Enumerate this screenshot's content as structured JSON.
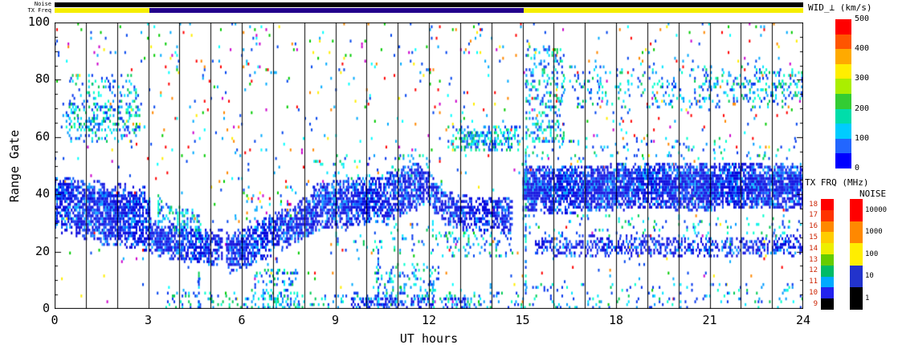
{
  "axes": {
    "xlabel": "UT hours",
    "ylabel": "Range Gate",
    "xticks": [
      "0",
      "3",
      "6",
      "9",
      "12",
      "15",
      "18",
      "21",
      "24"
    ],
    "yticks": [
      "0",
      "20",
      "40",
      "60",
      "80",
      "100"
    ]
  },
  "top_strips": {
    "noise_label": "Noise",
    "txfreq_label": "TX Freq",
    "noise_segments": [
      {
        "t0": 0,
        "t1": 24,
        "color": "#000000"
      }
    ],
    "txfreq_segments": [
      {
        "t0": 0,
        "t1": 3.05,
        "color": "#f5ee00"
      },
      {
        "t0": 3.05,
        "t1": 15.05,
        "color": "#23008c"
      },
      {
        "t0": 15.05,
        "t1": 24,
        "color": "#f5ee00"
      }
    ]
  },
  "legends": {
    "wid": {
      "title": "WID_⊥ (km/s)",
      "ticks": [
        "500",
        "400",
        "300",
        "200",
        "100",
        "0"
      ],
      "colors_top_to_bottom": [
        "#ff0000",
        "#ff5500",
        "#ffaa00",
        "#ffee00",
        "#aaee00",
        "#33cc33",
        "#00ddaa",
        "#00ccff",
        "#2266ff",
        "#0000ff"
      ]
    },
    "txfrq": {
      "title": "TX FRQ (MHz)",
      "ticks": [
        "18",
        "17",
        "16",
        "15",
        "14",
        "13",
        "12",
        "11",
        "10",
        "9"
      ],
      "colors_top_to_bottom": [
        "#ff0000",
        "#ff3300",
        "#ff8800",
        "#ffcc00",
        "#eeee00",
        "#66cc00",
        "#00bb66",
        "#00aaff",
        "#2222ee",
        "#000000"
      ]
    },
    "noise": {
      "title": "NOISE",
      "ticks": [
        "10000",
        "1000",
        "100",
        "10",
        "1"
      ],
      "colors_top_to_bottom": [
        "#ff0000",
        "#ff8800",
        "#ffee00",
        "#2233cc",
        "#000000"
      ]
    }
  },
  "chart_data": {
    "type": "heatmap",
    "title": "",
    "xlabel": "UT hours",
    "ylabel": "Range Gate",
    "xlim": [
      0,
      24
    ],
    "ylim": [
      0,
      100
    ],
    "xticks": [
      0,
      3,
      6,
      9,
      12,
      15,
      18,
      21,
      24
    ],
    "yticks": [
      0,
      20,
      40,
      60,
      80,
      100
    ],
    "grid": "vertical black line at every UT hour",
    "value_scale": {
      "name": "WID_⊥",
      "units": "km/s",
      "range": [
        0,
        500
      ]
    },
    "tx_freq_track": [
      {
        "t0": 0,
        "t1": 3,
        "approx_MHz": 14
      },
      {
        "t0": 3,
        "t1": 15,
        "approx_MHz": 11
      },
      {
        "t0": 15,
        "t1": 24,
        "approx_MHz": 14
      }
    ],
    "noise_track": [
      {
        "t0": 0,
        "t1": 24,
        "approx_level": 1
      }
    ],
    "palettes": {
      "core": [
        "#0000dd",
        "#0000dd",
        "#0000dd",
        "#0000dd",
        "#1133ee",
        "#0055ff",
        "#00aaff"
      ],
      "cool": [
        "#0033ee",
        "#0033ee",
        "#0099ff",
        "#00e5ff",
        "#00ffcc",
        "#00cc55"
      ],
      "mixed": [
        "#0044ee",
        "#0044ee",
        "#00aaff",
        "#00aaff",
        "#00ffff",
        "#00cc00",
        "#ff0000",
        "#ff8800",
        "#ffee00",
        "#cc00cc"
      ]
    },
    "bands": [
      {
        "t0": 0.0,
        "t1": 3.05,
        "pts": [
          [
            0,
            36
          ],
          [
            0.8,
            34
          ],
          [
            1.6,
            31
          ],
          [
            2.4,
            30
          ],
          [
            3.05,
            29
          ]
        ],
        "hw": 9,
        "density": 0.8,
        "palette": "core"
      },
      {
        "t0": 0.0,
        "t1": 3.05,
        "pts": [
          [
            0,
            42
          ],
          [
            3.05,
            38
          ]
        ],
        "hw": 4,
        "density": 0.5,
        "palette": "core"
      },
      {
        "t0": 3.05,
        "t1": 5.35,
        "pts": [
          [
            3.05,
            25
          ],
          [
            4.2,
            22
          ],
          [
            5.35,
            21
          ]
        ],
        "hw": 6,
        "density": 0.8,
        "palette": "core"
      },
      {
        "t0": 3.3,
        "t1": 4.7,
        "pts": [
          [
            3.3,
            34
          ],
          [
            4.0,
            31
          ],
          [
            4.7,
            28
          ]
        ],
        "hw": 5,
        "density": 0.45,
        "palette": "cool"
      },
      {
        "t0": 5.5,
        "t1": 8.3,
        "pts": [
          [
            5.5,
            19
          ],
          [
            6.3,
            22
          ],
          [
            7.2,
            27
          ],
          [
            8.3,
            33
          ]
        ],
        "hw": 7,
        "density": 0.8,
        "palette": "core"
      },
      {
        "t0": 8.3,
        "t1": 11.7,
        "pts": [
          [
            8.3,
            35
          ],
          [
            9.5,
            37
          ],
          [
            10.5,
            38
          ],
          [
            11.7,
            43
          ]
        ],
        "hw": 8,
        "density": 0.82,
        "palette": "core"
      },
      {
        "t0": 11.7,
        "t1": 12.4,
        "pts": [
          [
            11.7,
            44
          ],
          [
            12.1,
            40
          ],
          [
            12.4,
            37
          ]
        ],
        "hw": 6,
        "density": 0.7,
        "palette": "core"
      },
      {
        "t0": 12.4,
        "t1": 14.65,
        "pts": [
          [
            12.4,
            35
          ],
          [
            13.2,
            33
          ],
          [
            14.2,
            32
          ],
          [
            14.65,
            32
          ]
        ],
        "hw": 6,
        "density": 0.72,
        "palette": "core"
      },
      {
        "t0": 15.0,
        "t1": 24.0,
        "pts": [
          [
            15,
            42
          ],
          [
            16,
            41
          ],
          [
            17.5,
            42
          ],
          [
            19,
            43
          ],
          [
            20.5,
            42
          ],
          [
            22,
            43
          ],
          [
            24,
            42
          ]
        ],
        "hw": 8,
        "density": 0.93,
        "palette": "core"
      },
      {
        "t0": 15.4,
        "t1": 24.0,
        "pts": [
          [
            15.4,
            21
          ],
          [
            18,
            22
          ],
          [
            21,
            21
          ],
          [
            24,
            22
          ]
        ],
        "hw": 3.5,
        "density": 0.5,
        "palette": "core"
      }
    ],
    "regions": [
      {
        "t0": 0,
        "t1": 24,
        "g0": 52,
        "g1": 100,
        "density": 0.028,
        "palette": "mixed"
      },
      {
        "t0": 0,
        "t1": 24,
        "g0": 0,
        "g1": 52,
        "density": 0.012,
        "palette": "mixed"
      },
      {
        "t0": 0.4,
        "t1": 2.6,
        "g0": 58,
        "g1": 82,
        "density": 0.16,
        "palette": "cool"
      },
      {
        "t0": 0.2,
        "t1": 2.9,
        "g0": 62,
        "g1": 72,
        "density": 0.22,
        "palette": "cool"
      },
      {
        "t0": 12.6,
        "t1": 14.9,
        "g0": 55,
        "g1": 64,
        "density": 0.3,
        "palette": "cool"
      },
      {
        "t0": 13.2,
        "t1": 14.6,
        "g0": 57,
        "g1": 62,
        "density": 0.4,
        "palette": "cool"
      },
      {
        "t0": 15.1,
        "t1": 16.3,
        "g0": 58,
        "g1": 92,
        "density": 0.26,
        "palette": "cool"
      },
      {
        "t0": 16.5,
        "t1": 24,
        "g0": 70,
        "g1": 85,
        "density": 0.1,
        "palette": "cool"
      },
      {
        "t0": 20.5,
        "t1": 24,
        "g0": 72,
        "g1": 83,
        "density": 0.18,
        "palette": "cool"
      },
      {
        "t0": 3.5,
        "t1": 15,
        "g0": 0,
        "g1": 6,
        "density": 0.15,
        "palette": "cool"
      },
      {
        "t0": 9.5,
        "t1": 13.2,
        "g0": 0,
        "g1": 4,
        "density": 0.4,
        "palette": "core"
      },
      {
        "t0": 15,
        "t1": 24,
        "g0": 0,
        "g1": 9,
        "density": 0.07,
        "palette": "cool"
      },
      {
        "t0": 8.3,
        "t1": 12.0,
        "g0": 44,
        "g1": 54,
        "density": 0.1,
        "palette": "cool"
      },
      {
        "t0": 5.0,
        "t1": 8.0,
        "g0": 30,
        "g1": 45,
        "density": 0.06,
        "palette": "mixed"
      },
      {
        "t0": 9.0,
        "t1": 12.0,
        "g0": 20,
        "g1": 30,
        "density": 0.12,
        "palette": "cool"
      },
      {
        "t0": 12.0,
        "t1": 14.8,
        "g0": 18,
        "g1": 27,
        "density": 0.15,
        "palette": "cool"
      },
      {
        "t0": 15.0,
        "t1": 24.0,
        "g0": 25,
        "g1": 33,
        "density": 0.08,
        "palette": "cool"
      },
      {
        "t0": 15.0,
        "t1": 24.0,
        "g0": 52,
        "g1": 60,
        "density": 0.06,
        "palette": "cool"
      },
      {
        "t0": 6.3,
        "t1": 7.8,
        "g0": 0,
        "g1": 14,
        "density": 0.2,
        "palette": "cool"
      },
      {
        "t0": 10.2,
        "t1": 12.3,
        "g0": 4,
        "g1": 16,
        "density": 0.18,
        "palette": "cool"
      }
    ],
    "streaks": [
      {
        "t": 15.08,
        "g0": 5,
        "g1": 56,
        "density": 0.5
      },
      {
        "t": 7.1,
        "g0": 0,
        "g1": 18,
        "density": 0.35
      },
      {
        "t": 10.35,
        "g0": 0,
        "g1": 20,
        "density": 0.3
      },
      {
        "t": 11.05,
        "g0": 0,
        "g1": 22,
        "density": 0.3
      },
      {
        "t": 12.1,
        "g0": 0,
        "g1": 30,
        "density": 0.3
      },
      {
        "t": 13.95,
        "g0": 0,
        "g1": 25,
        "density": 0.3
      },
      {
        "t": 4.6,
        "g0": 0,
        "g1": 12,
        "density": 0.3
      }
    ]
  }
}
